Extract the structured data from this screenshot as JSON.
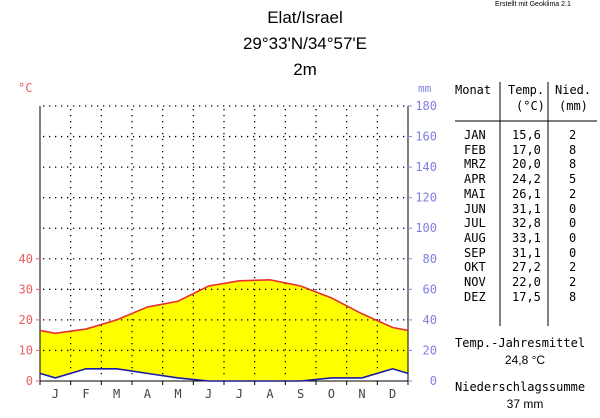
{
  "credit": "Erstellt mit Geoklima 2.1",
  "station": {
    "name": "Elat/Israel",
    "coords": "29°33'N/34°57'E",
    "elevation": "2m"
  },
  "colors": {
    "temperature": "#e8302f",
    "precipitation": "#1b1ba8",
    "fill": "#ffff00",
    "temp_axis": "#e86060",
    "precip_axis": "#8080e0"
  },
  "table": {
    "headers": {
      "month": "Monat",
      "temp_line1": "Temp.",
      "temp_line2": "(°C)",
      "precip_line1": "Nied.",
      "precip_line2": "(mm)"
    },
    "rows": [
      {
        "month": "JAN",
        "temp": "15,6",
        "precip": "2"
      },
      {
        "month": "FEB",
        "temp": "17,0",
        "precip": "8"
      },
      {
        "month": "MRZ",
        "temp": "20,0",
        "precip": "8"
      },
      {
        "month": "APR",
        "temp": "24,2",
        "precip": "5"
      },
      {
        "month": "MAI",
        "temp": "26,1",
        "precip": "2"
      },
      {
        "month": "JUN",
        "temp": "31,1",
        "precip": "0"
      },
      {
        "month": "JUL",
        "temp": "32,8",
        "precip": "0"
      },
      {
        "month": "AUG",
        "temp": "33,1",
        "precip": "0"
      },
      {
        "month": "SEP",
        "temp": "31,1",
        "precip": "0"
      },
      {
        "month": "OKT",
        "temp": "27,2",
        "precip": "2"
      },
      {
        "month": "NOV",
        "temp": "22,0",
        "precip": "2"
      },
      {
        "month": "DEZ",
        "temp": "17,5",
        "precip": "8"
      }
    ]
  },
  "summary": {
    "temp_label": "Temp.-Jahresmittel",
    "temp_value": "24,8 °C",
    "precip_label": "Niederschlagssumme",
    "precip_value": "37 mm"
  },
  "chart_data": {
    "type": "line",
    "categories": [
      "J",
      "F",
      "M",
      "A",
      "M",
      "J",
      "J",
      "A",
      "S",
      "O",
      "N",
      "D"
    ],
    "series": [
      {
        "values": [
          15.6,
          17.0,
          20.0,
          24.2,
          26.1,
          31.1,
          32.8,
          33.1,
          31.1,
          27.2,
          22.0,
          17.5
        ]
      },
      {
        "values": [
          2,
          8,
          8,
          5,
          2,
          0,
          0,
          0,
          0,
          2,
          2,
          8
        ]
      }
    ],
    "y_left": {
      "unit": "°C",
      "range": [
        0,
        90
      ],
      "ticks": [
        0,
        10,
        20,
        30,
        40
      ]
    },
    "y_right": {
      "unit": "mm",
      "range": [
        0,
        180
      ],
      "ticks": [
        0,
        20,
        40,
        60,
        80,
        100,
        120,
        140,
        160,
        180
      ]
    },
    "grid": true
  }
}
